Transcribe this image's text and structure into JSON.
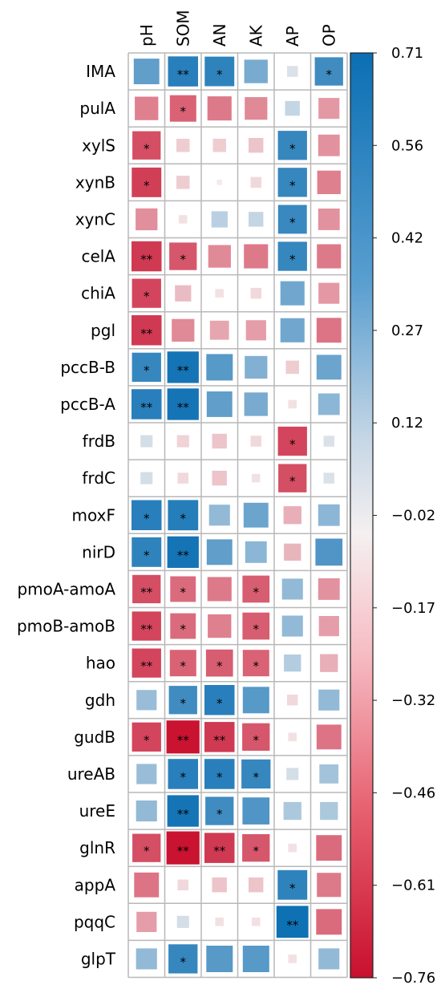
{
  "chart_data": {
    "type": "heatmap",
    "title": "",
    "columns": [
      "pH",
      "SOM",
      "AN",
      "AK",
      "AP",
      "OP"
    ],
    "rows": [
      "IMA",
      "pulA",
      "xylS",
      "xynB",
      "xynC",
      "celA",
      "chiA",
      "pgl",
      "pccB-B",
      "pccB-A",
      "frdB",
      "frdC",
      "moxF",
      "nirD",
      "pmoA-amoA",
      "pmoB-amoB",
      "hao",
      "gdh",
      "gudB",
      "ureAB",
      "ureE",
      "glnR",
      "appA",
      "pqqC",
      "glpT"
    ],
    "values": [
      [
        0.45,
        0.62,
        0.6,
        0.38,
        0.08,
        0.55
      ],
      [
        -0.38,
        -0.48,
        -0.4,
        -0.35,
        0.15,
        -0.3
      ],
      [
        -0.55,
        -0.12,
        -0.12,
        -0.15,
        0.58,
        -0.32
      ],
      [
        -0.6,
        -0.12,
        -0.02,
        -0.08,
        0.58,
        -0.38
      ],
      [
        -0.33,
        -0.05,
        0.18,
        0.15,
        0.57,
        -0.32
      ],
      [
        -0.62,
        -0.52,
        -0.35,
        -0.4,
        0.58,
        -0.4
      ],
      [
        -0.58,
        -0.18,
        -0.05,
        -0.08,
        0.4,
        -0.3
      ],
      [
        -0.62,
        -0.35,
        -0.25,
        -0.28,
        0.4,
        -0.42
      ],
      [
        0.58,
        0.68,
        0.48,
        0.35,
        -0.12,
        0.42
      ],
      [
        0.62,
        0.68,
        0.45,
        0.38,
        -0.05,
        0.32
      ],
      [
        0.1,
        -0.1,
        -0.15,
        -0.08,
        -0.58,
        0.08
      ],
      [
        0.1,
        -0.08,
        -0.15,
        -0.05,
        -0.55,
        0.08
      ],
      [
        0.62,
        0.63,
        0.3,
        0.42,
        -0.22,
        0.32
      ],
      [
        0.6,
        0.68,
        0.45,
        0.32,
        -0.2,
        0.5
      ],
      [
        -0.55,
        -0.45,
        -0.4,
        -0.5,
        0.3,
        -0.32
      ],
      [
        -0.58,
        -0.45,
        -0.38,
        -0.5,
        0.3,
        -0.28
      ],
      [
        -0.58,
        -0.48,
        -0.5,
        -0.48,
        0.2,
        -0.22
      ],
      [
        0.28,
        0.55,
        0.62,
        0.48,
        -0.08,
        0.3
      ],
      [
        -0.58,
        -0.75,
        -0.62,
        -0.52,
        -0.05,
        -0.42
      ],
      [
        0.28,
        0.62,
        0.62,
        0.58,
        0.1,
        0.25
      ],
      [
        0.3,
        0.68,
        0.55,
        0.5,
        0.22,
        0.22
      ],
      [
        -0.55,
        -0.75,
        -0.62,
        -0.52,
        -0.05,
        -0.45
      ],
      [
        -0.42,
        -0.08,
        -0.15,
        -0.15,
        0.6,
        -0.4
      ],
      [
        -0.28,
        0.1,
        -0.05,
        -0.05,
        0.7,
        -0.45
      ],
      [
        0.3,
        0.58,
        0.48,
        0.48,
        -0.05,
        0.3
      ]
    ],
    "significance": [
      [
        "",
        "**",
        "*",
        "",
        "",
        "*"
      ],
      [
        "",
        "*",
        "",
        "",
        "",
        ""
      ],
      [
        "*",
        "",
        "",
        "",
        "*",
        ""
      ],
      [
        "*",
        "",
        "",
        "",
        "*",
        ""
      ],
      [
        "",
        "",
        "",
        "",
        "*",
        ""
      ],
      [
        "**",
        "*",
        "",
        "",
        "*",
        ""
      ],
      [
        "*",
        "",
        "",
        "",
        "",
        ""
      ],
      [
        "**",
        "",
        "",
        "",
        "",
        ""
      ],
      [
        "*",
        "**",
        "",
        "",
        "",
        ""
      ],
      [
        "**",
        "**",
        "",
        "",
        "",
        ""
      ],
      [
        "",
        "",
        "",
        "",
        "*",
        ""
      ],
      [
        "",
        "",
        "",
        "",
        "*",
        ""
      ],
      [
        "*",
        "*",
        "",
        "",
        "",
        ""
      ],
      [
        "*",
        "**",
        "",
        "",
        "",
        ""
      ],
      [
        "**",
        "*",
        "",
        "*",
        "",
        ""
      ],
      [
        "**",
        "*",
        "",
        "*",
        "",
        ""
      ],
      [
        "**",
        "*",
        "*",
        "*",
        "",
        ""
      ],
      [
        "",
        "*",
        "*",
        "",
        "",
        ""
      ],
      [
        "*",
        "**",
        "**",
        "*",
        "",
        ""
      ],
      [
        "",
        "*",
        "*",
        "*",
        "",
        ""
      ],
      [
        "",
        "**",
        "*",
        "",
        "",
        ""
      ],
      [
        "*",
        "**",
        "**",
        "*",
        "",
        ""
      ],
      [
        "",
        "",
        "",
        "",
        "*",
        ""
      ],
      [
        "",
        "",
        "",
        "",
        "**",
        ""
      ],
      [
        "",
        "*",
        "",
        "",
        "",
        ""
      ]
    ],
    "colorbar": {
      "range": [
        -0.76,
        0.71
      ],
      "ticks": [
        "0.71",
        "0.56",
        "0.42",
        "0.27",
        "0.12",
        "−0.02",
        "−0.17",
        "−0.32",
        "−0.46",
        "−0.61",
        "−0.76"
      ],
      "colors": {
        "low": "#c8102e",
        "mid": "#f5f0f0",
        "high": "#0b6fb3"
      }
    }
  }
}
